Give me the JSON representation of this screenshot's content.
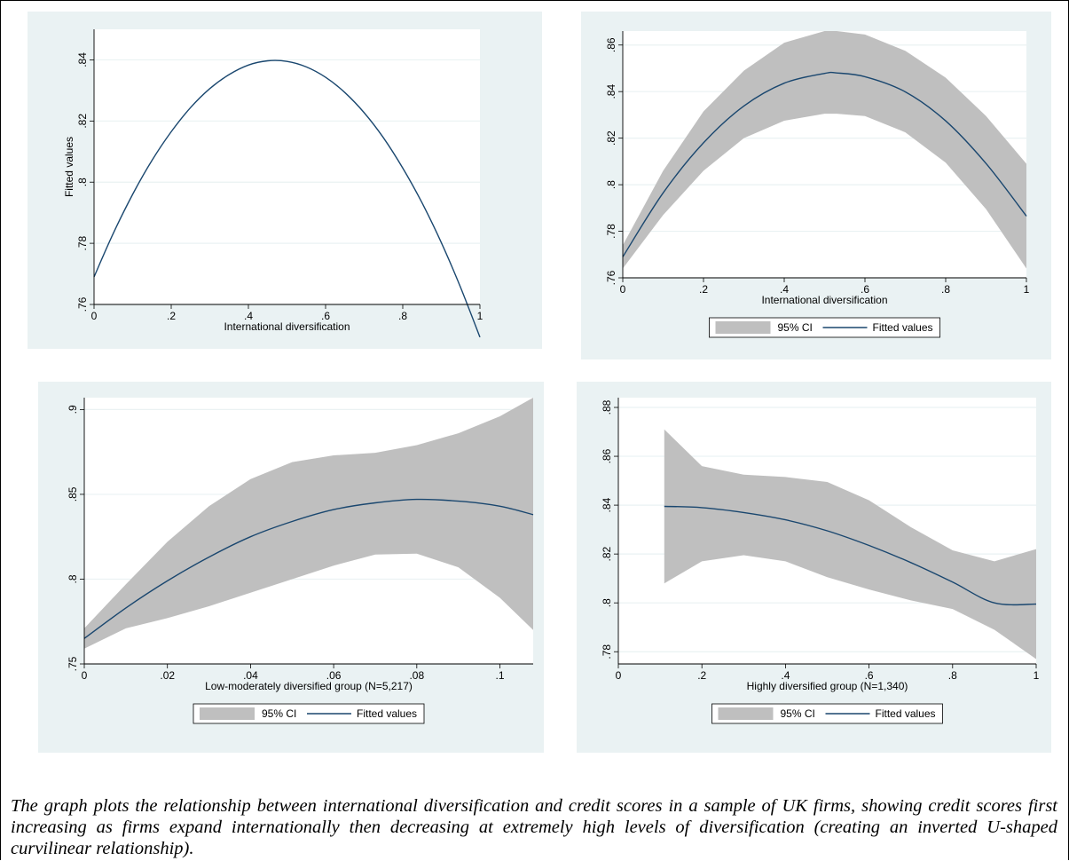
{
  "chart_data": [
    {
      "type": "line",
      "ci": false,
      "xlabel": "International diversification",
      "ylabel": "Fitted values",
      "xlim": [
        0,
        1
      ],
      "ylim": [
        0.76,
        0.85
      ],
      "xticks": [
        0,
        0.2,
        0.4,
        0.6,
        0.8,
        1
      ],
      "xtick_labels": [
        "0",
        ".2",
        ".4",
        ".6",
        ".8",
        "1"
      ],
      "yticks": [
        0.76,
        0.78,
        0.8,
        0.82,
        0.84
      ],
      "ytick_labels": [
        ".76",
        ".78",
        ".8",
        ".82",
        ".84"
      ],
      "series": [
        {
          "x": [
            0,
            0.05,
            0.1,
            0.15,
            0.2,
            0.25,
            0.3,
            0.35,
            0.4,
            0.45,
            0.5,
            0.55,
            0.6,
            0.65,
            0.7,
            0.75,
            0.8,
            0.85,
            0.9,
            0.95,
            1
          ],
          "y": [
            0.769,
            0.7833,
            0.796,
            0.8071,
            0.8165,
            0.8244,
            0.8306,
            0.8352,
            0.8383,
            0.8397,
            0.8395,
            0.8377,
            0.8343,
            0.8293,
            0.8227,
            0.8145,
            0.8046,
            0.7932,
            0.7802,
            0.7655,
            0.7493
          ]
        }
      ],
      "legend": []
    },
    {
      "type": "line",
      "ci": true,
      "xlabel": "International diversification",
      "ylabel": "",
      "xlim": [
        0,
        1
      ],
      "ylim": [
        0.76,
        0.866
      ],
      "xticks": [
        0,
        0.2,
        0.4,
        0.6,
        0.8,
        1
      ],
      "xtick_labels": [
        "0",
        ".2",
        ".4",
        ".6",
        ".8",
        "1"
      ],
      "yticks": [
        0.76,
        0.78,
        0.8,
        0.82,
        0.84,
        0.86
      ],
      "ytick_labels": [
        ".76",
        ".78",
        ".8",
        ".82",
        ".84",
        ".86"
      ],
      "series": [
        {
          "x": [
            0,
            0.1,
            0.2,
            0.3,
            0.4,
            0.5,
            0.53,
            0.6,
            0.7,
            0.8,
            0.9,
            1
          ],
          "y": [
            0.769,
            0.7965,
            0.818,
            0.8338,
            0.8436,
            0.8478,
            0.848,
            0.8464,
            0.8399,
            0.8274,
            0.8091,
            0.7865
          ],
          "lower": [
            0.764,
            0.787,
            0.806,
            0.82,
            0.8275,
            0.8305,
            0.8305,
            0.8295,
            0.8225,
            0.8095,
            0.7895,
            0.764
          ],
          "upper": [
            0.774,
            0.806,
            0.8315,
            0.849,
            0.861,
            0.866,
            0.866,
            0.8645,
            0.8575,
            0.846,
            0.8295,
            0.809
          ]
        }
      ],
      "legend": [
        "95% CI",
        "Fitted values"
      ]
    },
    {
      "type": "line",
      "ci": true,
      "xlabel": "Low-moderately diversified group (N=5,217)",
      "ylabel": "",
      "xlim": [
        0,
        0.108
      ],
      "ylim": [
        0.75,
        0.907
      ],
      "xticks": [
        0,
        0.02,
        0.04,
        0.06,
        0.08,
        0.1
      ],
      "xtick_labels": [
        "0",
        ".02",
        ".04",
        ".06",
        ".08",
        ".1"
      ],
      "yticks": [
        0.75,
        0.8,
        0.85,
        0.9
      ],
      "ytick_labels": [
        ".75",
        ".8",
        ".85",
        ".9"
      ],
      "series": [
        {
          "x": [
            0,
            0.01,
            0.02,
            0.03,
            0.04,
            0.05,
            0.06,
            0.07,
            0.08,
            0.09,
            0.1,
            0.108
          ],
          "y": [
            0.765,
            0.783,
            0.799,
            0.813,
            0.825,
            0.834,
            0.841,
            0.845,
            0.847,
            0.846,
            0.843,
            0.838
          ],
          "lower": [
            0.759,
            0.771,
            0.777,
            0.784,
            0.792,
            0.8,
            0.808,
            0.8145,
            0.815,
            0.807,
            0.789,
            0.77
          ],
          "upper": [
            0.771,
            0.797,
            0.822,
            0.843,
            0.859,
            0.869,
            0.873,
            0.8745,
            0.879,
            0.886,
            0.896,
            0.907
          ]
        }
      ],
      "legend": [
        "95% CI",
        "Fitted values"
      ]
    },
    {
      "type": "line",
      "ci": true,
      "xlabel": "Highly diversified group (N=1,340)",
      "ylabel": "",
      "xlim": [
        0,
        1
      ],
      "ylim": [
        0.775,
        0.884
      ],
      "xticks": [
        0,
        0.2,
        0.4,
        0.6,
        0.8,
        1
      ],
      "xtick_labels": [
        "0",
        ".2",
        ".4",
        ".6",
        ".8",
        "1"
      ],
      "yticks": [
        0.78,
        0.8,
        0.82,
        0.84,
        0.86,
        0.88
      ],
      "ytick_labels": [
        ".78",
        ".8",
        ".82",
        ".84",
        ".86",
        ".88"
      ],
      "series": [
        {
          "x": [
            0.11,
            0.2,
            0.3,
            0.4,
            0.5,
            0.6,
            0.7,
            0.8,
            0.9,
            1
          ],
          "y": [
            0.8395,
            0.839,
            0.837,
            0.834,
            0.8295,
            0.8235,
            0.8165,
            0.8085,
            0.8,
            0.7995
          ],
          "lower": [
            0.808,
            0.817,
            0.8195,
            0.817,
            0.8105,
            0.8055,
            0.801,
            0.7975,
            0.789,
            0.777
          ],
          "upper": [
            0.871,
            0.856,
            0.8525,
            0.8515,
            0.8495,
            0.842,
            0.831,
            0.8215,
            0.817,
            0.822
          ]
        }
      ],
      "legend": [
        "95% CI",
        "Fitted values"
      ]
    }
  ],
  "caption": "The graph plots the relationship between international diversification and credit scores in a sample of UK firms, showing credit scores first increasing as firms expand internationally then decreasing at extremely high levels of diversification (creating an inverted U-shaped curvilinear relationship).",
  "colors": {
    "panel_bg": "#eaf2f3",
    "plot_bg": "#ffffff",
    "line": "#1a476f",
    "ci_band": "#bfbfbf",
    "grid": "#eaf2f3"
  }
}
